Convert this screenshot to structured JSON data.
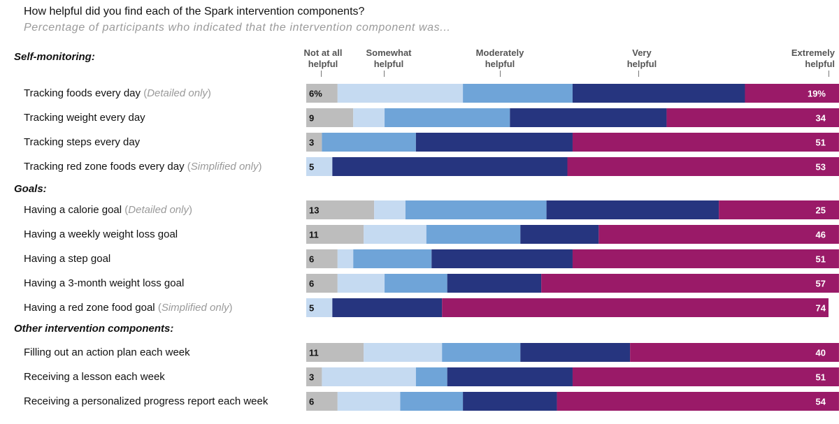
{
  "title": "How helpful did you find each of the Spark intervention components?",
  "subtitle": "Percentage of participants who indicated that the intervention component was...",
  "scale": [
    {
      "line1": "Not at all",
      "line2": "helpful"
    },
    {
      "line1": "Somewhat",
      "line2": "helpful"
    },
    {
      "line1": "Moderately",
      "line2": "helpful"
    },
    {
      "line1": "Very",
      "line2": "helpful"
    },
    {
      "line1": "Extremely",
      "line2": "helpful"
    }
  ],
  "groups": {
    "self_monitoring": "Self-monitoring:",
    "goals": "Goals:",
    "other": "Other intervention components:"
  },
  "labels": [
    {
      "text": "Tracking foods every day",
      "note": "Detailed only"
    },
    {
      "text": "Tracking weight every day"
    },
    {
      "text": "Tracking steps every day"
    },
    {
      "text": "Tracking red zone foods every day",
      "note": "Simplified only"
    },
    {
      "text": "Having a calorie goal",
      "note": "Detailed only"
    },
    {
      "text": "Having a weekly weight loss goal"
    },
    {
      "text": "Having a step goal"
    },
    {
      "text": "Having a 3-month weight loss goal"
    },
    {
      "text": "Having a red zone food goal",
      "note": "Simplified only"
    },
    {
      "text": "Filling out an action plan each week"
    },
    {
      "text": "Receiving a lesson each week"
    },
    {
      "text": "Receiving a personalized progress report each week"
    }
  ],
  "chart_data": {
    "type": "bar",
    "stacked": true,
    "orientation": "horizontal",
    "title": "How helpful did you find each of the Spark intervention components?",
    "categories": [
      "Tracking foods every day",
      "Tracking weight every day",
      "Tracking steps every day",
      "Tracking red zone foods every day",
      "Having a calorie goal",
      "Having a weekly weight loss goal",
      "Having a step goal",
      "Having a 3-month weight loss goal",
      "Having a red zone food goal",
      "Filling out an action plan each week",
      "Receiving a lesson each week",
      "Receiving a personalized progress report each week"
    ],
    "series": [
      {
        "name": "Not at all helpful",
        "color": "#bdbdbd",
        "values": [
          6,
          9,
          3,
          0,
          13,
          11,
          6,
          6,
          0,
          11,
          3,
          6
        ]
      },
      {
        "name": "Somewhat helpful",
        "color": "#c5daf1",
        "values": [
          24,
          6,
          0,
          5,
          6,
          12,
          3,
          9,
          5,
          15,
          18,
          12
        ]
      },
      {
        "name": "Moderately helpful",
        "color": "#6fa4d8",
        "values": [
          21,
          24,
          18,
          0,
          27,
          18,
          15,
          12,
          0,
          15,
          6,
          12
        ]
      },
      {
        "name": "Very helpful",
        "color": "#26357f",
        "values": [
          33,
          30,
          30,
          45,
          33,
          15,
          27,
          18,
          21,
          21,
          24,
          18
        ]
      },
      {
        "name": "Extremely helpful",
        "color": "#9a1a68",
        "values": [
          19,
          34,
          51,
          53,
          25,
          46,
          51,
          57,
          74,
          40,
          51,
          54
        ]
      }
    ],
    "labels": {
      "first": [
        "6%",
        "9",
        "3",
        "5",
        "13",
        "11",
        "6",
        "6",
        "5",
        "11",
        "3",
        "6"
      ],
      "last": [
        "19%",
        "34",
        "51",
        "53",
        "25",
        "46",
        "51",
        "57",
        "74",
        "40",
        "51",
        "54"
      ]
    },
    "xlim": [
      0,
      100
    ]
  }
}
